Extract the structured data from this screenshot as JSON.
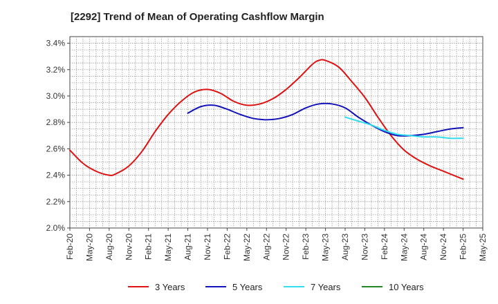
{
  "chart_data": {
    "type": "line",
    "title": "[2292]  Trend of Mean of Operating Cashflow Margin",
    "xlabel": "",
    "ylabel": "",
    "x_ticks": [
      "Feb-20",
      "May-20",
      "Aug-20",
      "Nov-20",
      "Feb-21",
      "May-21",
      "Aug-21",
      "Nov-21",
      "Feb-22",
      "May-22",
      "Aug-22",
      "Nov-22",
      "Feb-23",
      "May-23",
      "Aug-23",
      "Nov-23",
      "Feb-24",
      "May-24",
      "Aug-24",
      "Nov-24",
      "Feb-25",
      "May-25"
    ],
    "y_ticks": [
      "2.0%",
      "2.2%",
      "2.4%",
      "2.6%",
      "2.8%",
      "3.0%",
      "3.2%",
      "3.4%"
    ],
    "ylim": [
      2.0,
      3.45
    ],
    "grid": true,
    "legend_position": "bottom",
    "series": [
      {
        "name": "3 Years",
        "color": "#dd1111",
        "points": [
          [
            "Feb-20",
            2.59
          ],
          [
            "Apr-20",
            2.49
          ],
          [
            "Jun-20",
            2.43
          ],
          [
            "Aug-20",
            2.4
          ],
          [
            "Sep-20",
            2.41
          ],
          [
            "Nov-20",
            2.47
          ],
          [
            "Jan-21",
            2.58
          ],
          [
            "Mar-21",
            2.73
          ],
          [
            "May-21",
            2.86
          ],
          [
            "Jul-21",
            2.96
          ],
          [
            "Sep-21",
            3.03
          ],
          [
            "Nov-21",
            3.05
          ],
          [
            "Jan-22",
            3.02
          ],
          [
            "Mar-22",
            2.96
          ],
          [
            "May-22",
            2.93
          ],
          [
            "Jul-22",
            2.94
          ],
          [
            "Sep-22",
            2.98
          ],
          [
            "Nov-22",
            3.05
          ],
          [
            "Jan-23",
            3.14
          ],
          [
            "Mar-23",
            3.24
          ],
          [
            "Apr-23",
            3.27
          ],
          [
            "May-23",
            3.27
          ],
          [
            "Jul-23",
            3.22
          ],
          [
            "Sep-23",
            3.11
          ],
          [
            "Nov-23",
            2.99
          ],
          [
            "Jan-24",
            2.84
          ],
          [
            "Mar-24",
            2.7
          ],
          [
            "May-24",
            2.59
          ],
          [
            "Jul-24",
            2.52
          ],
          [
            "Sep-24",
            2.47
          ],
          [
            "Nov-24",
            2.43
          ],
          [
            "Feb-25",
            2.37
          ]
        ]
      },
      {
        "name": "5 Years",
        "color": "#1111bb",
        "points": [
          [
            "Aug-21",
            2.87
          ],
          [
            "Oct-21",
            2.92
          ],
          [
            "Dec-21",
            2.93
          ],
          [
            "Feb-22",
            2.9
          ],
          [
            "Apr-22",
            2.86
          ],
          [
            "Jun-22",
            2.83
          ],
          [
            "Aug-22",
            2.82
          ],
          [
            "Oct-22",
            2.83
          ],
          [
            "Dec-22",
            2.86
          ],
          [
            "Feb-23",
            2.91
          ],
          [
            "Apr-23",
            2.94
          ],
          [
            "Jun-23",
            2.94
          ],
          [
            "Aug-23",
            2.91
          ],
          [
            "Oct-23",
            2.84
          ],
          [
            "Dec-23",
            2.78
          ],
          [
            "Feb-24",
            2.73
          ],
          [
            "Apr-24",
            2.7
          ],
          [
            "Jun-24",
            2.7
          ],
          [
            "Aug-24",
            2.71
          ],
          [
            "Oct-24",
            2.73
          ],
          [
            "Dec-24",
            2.75
          ],
          [
            "Feb-25",
            2.76
          ]
        ]
      },
      {
        "name": "7 Years",
        "color": "#33ddee",
        "points": [
          [
            "Aug-23",
            2.84
          ],
          [
            "Oct-23",
            2.81
          ],
          [
            "Dec-23",
            2.78
          ],
          [
            "Feb-24",
            2.74
          ],
          [
            "Apr-24",
            2.71
          ],
          [
            "Jun-24",
            2.7
          ],
          [
            "Aug-24",
            2.69
          ],
          [
            "Oct-24",
            2.69
          ],
          [
            "Dec-24",
            2.68
          ],
          [
            "Feb-25",
            2.68
          ]
        ]
      },
      {
        "name": "10 Years",
        "color": "#228822",
        "points": []
      }
    ]
  }
}
